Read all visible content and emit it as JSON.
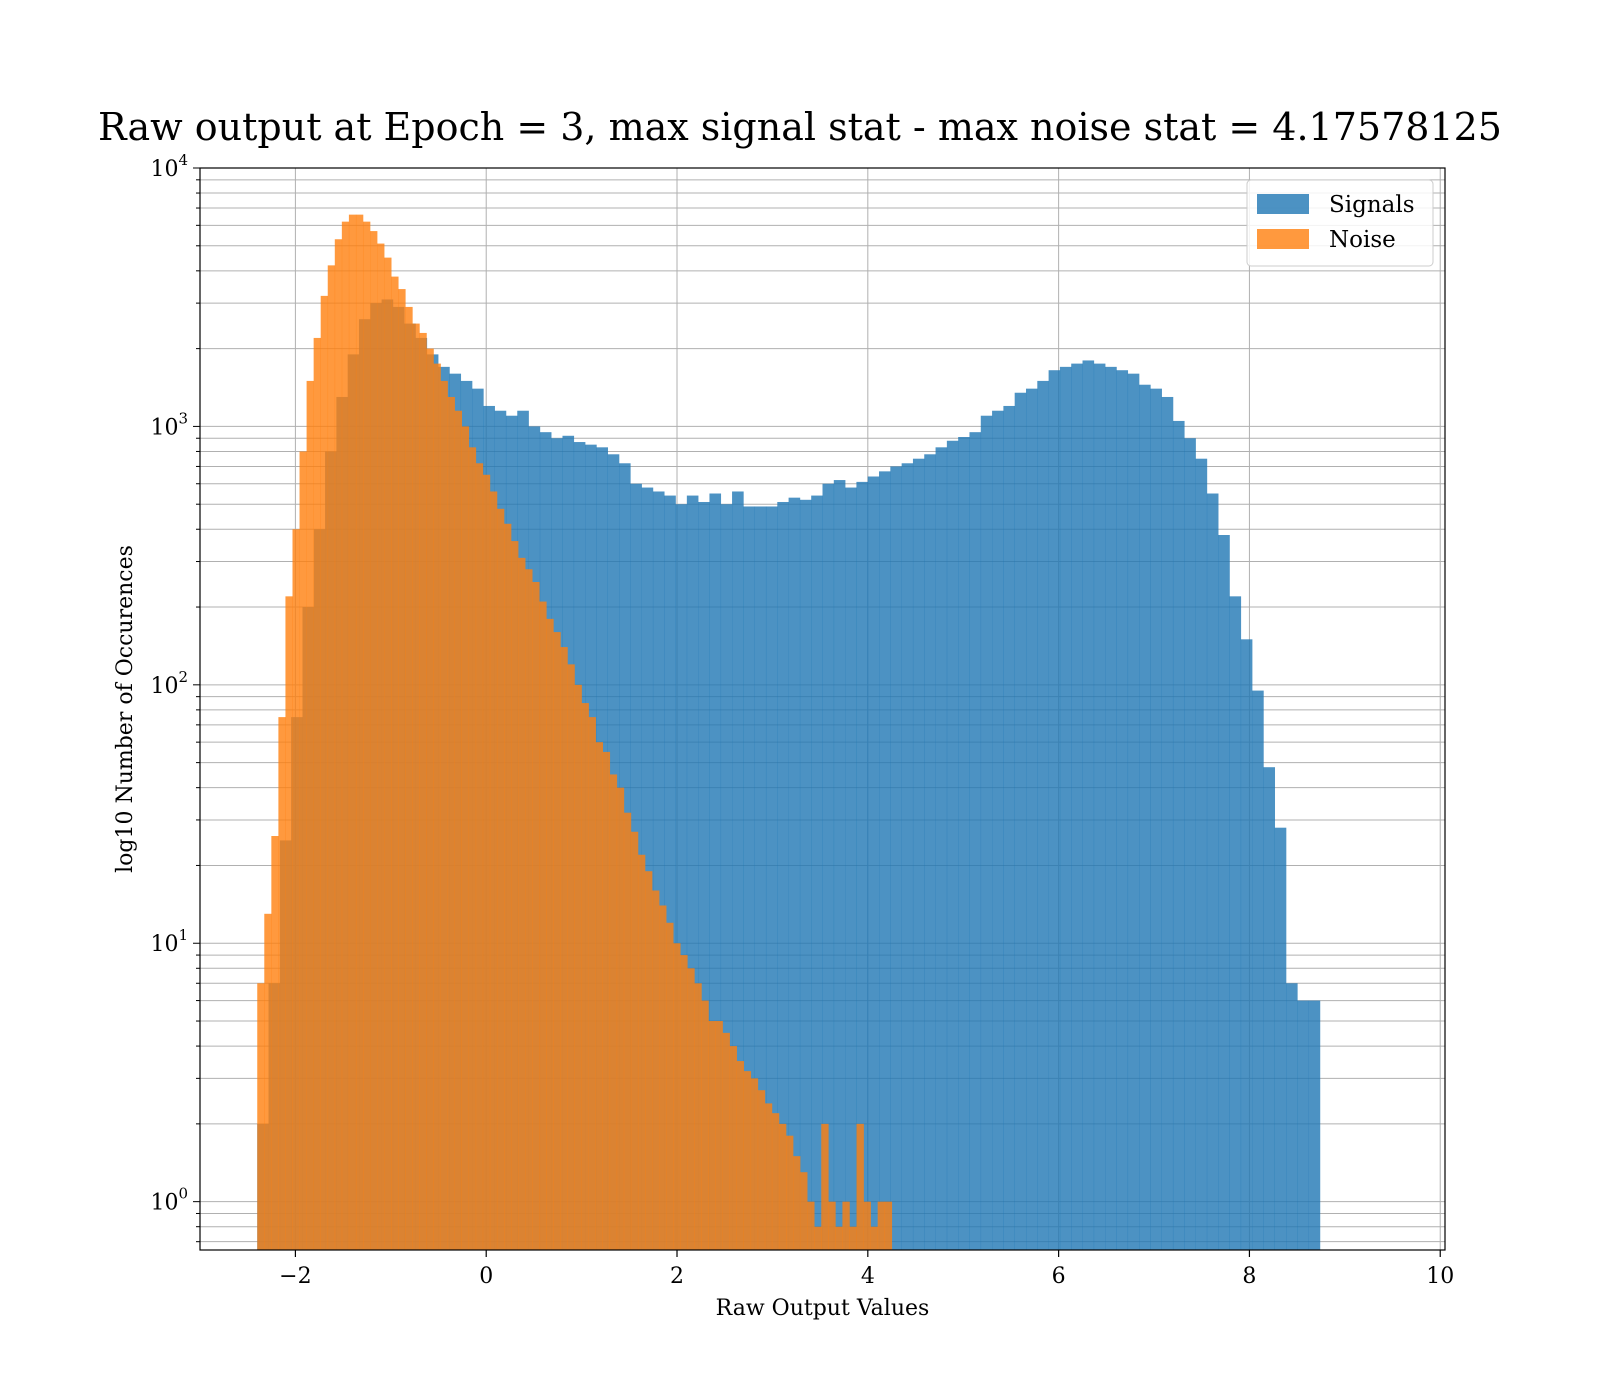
{
  "chart_data": {
    "type": "bar",
    "title": "Raw output at Epoch = 3, max signal stat - max noise stat = 4.17578125",
    "xlabel": "Raw Output Values",
    "ylabel": "log10 Number of Occurences",
    "xlim": [
      -3,
      10.05
    ],
    "ylim": [
      0.65,
      10000
    ],
    "xscale": "linear",
    "yscale": "log",
    "grid": true,
    "legend_position": "top-right",
    "xticks": [
      -2,
      0,
      2,
      4,
      6,
      8,
      10
    ],
    "xtick_labels": [
      "−2",
      "0",
      "2",
      "4",
      "6",
      "8",
      "10"
    ],
    "yticks": [
      1,
      10,
      100,
      1000,
      10000
    ],
    "ytick_labels": [
      {
        "base": "10",
        "exp": "0"
      },
      {
        "base": "10",
        "exp": "1"
      },
      {
        "base": "10",
        "exp": "2"
      },
      {
        "base": "10",
        "exp": "3"
      },
      {
        "base": "10",
        "exp": "4"
      }
    ],
    "series": [
      {
        "name": "Signals",
        "color": "#1f77b4",
        "opacity": 0.8,
        "bin_start": -2.4,
        "bin_width": 0.1185,
        "values": [
          2,
          7,
          25,
          75,
          200,
          400,
          800,
          1300,
          1900,
          2600,
          3000,
          3100,
          2900,
          2500,
          2200,
          1900,
          1700,
          1600,
          1500,
          1400,
          1200,
          1150,
          1100,
          1150,
          1000,
          950,
          900,
          920,
          870,
          850,
          830,
          780,
          720,
          600,
          580,
          560,
          540,
          500,
          540,
          510,
          550,
          500,
          560,
          490,
          490,
          490,
          510,
          530,
          520,
          540,
          600,
          620,
          580,
          610,
          640,
          670,
          700,
          720,
          750,
          780,
          830,
          880,
          910,
          950,
          1100,
          1150,
          1200,
          1350,
          1400,
          1500,
          1650,
          1700,
          1750,
          1800,
          1750,
          1700,
          1650,
          1600,
          1450,
          1400,
          1300,
          1050,
          900,
          750,
          550,
          380,
          220,
          150,
          95,
          48,
          28,
          7,
          6,
          6
        ]
      },
      {
        "name": "Noise",
        "color": "#ff7f0e",
        "opacity": 0.8,
        "bin_start": -2.4,
        "bin_width": 0.0739,
        "values": [
          7,
          13,
          26,
          75,
          220,
          400,
          800,
          1500,
          2200,
          3200,
          4200,
          5300,
          6200,
          6600,
          6600,
          6200,
          5700,
          5100,
          4500,
          3800,
          3400,
          2900,
          2500,
          2300,
          2000,
          1750,
          1500,
          1300,
          1150,
          1000,
          830,
          720,
          650,
          560,
          480,
          420,
          360,
          310,
          280,
          250,
          210,
          180,
          160,
          140,
          120,
          100,
          85,
          75,
          60,
          55,
          45,
          40,
          32,
          27,
          22,
          19,
          16,
          14,
          12,
          10,
          9,
          8,
          7,
          6,
          5,
          5,
          4.5,
          4,
          3.5,
          3.2,
          3,
          2.7,
          2.4,
          2.2,
          2,
          1.8,
          1.5,
          1.3,
          1,
          0.8,
          2,
          1,
          0.8,
          1,
          0.8,
          2,
          1,
          0.8,
          1,
          1
        ]
      }
    ]
  }
}
